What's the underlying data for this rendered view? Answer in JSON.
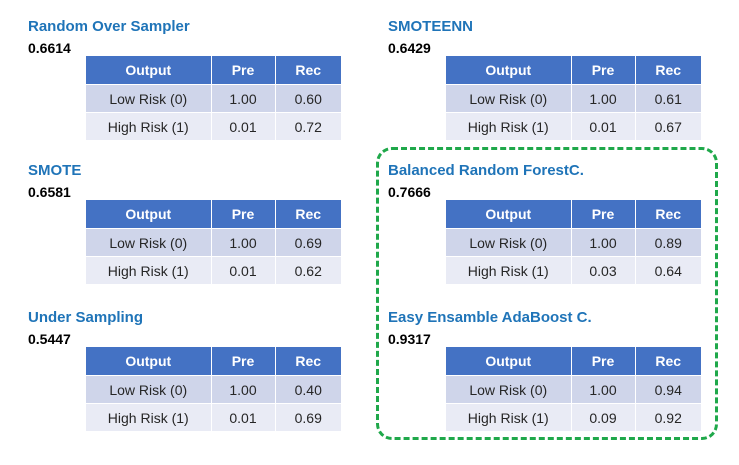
{
  "table_headers": [
    "Output",
    "Pre",
    "Rec"
  ],
  "models": [
    {
      "title": "Random Over Sampler",
      "score": "0.6614",
      "rows": [
        {
          "output": "Low Risk (0)",
          "pre": "1.00",
          "rec": "0.60"
        },
        {
          "output": "High Risk (1)",
          "pre": "0.01",
          "rec": "0.72"
        }
      ]
    },
    {
      "title": "SMOTEENN",
      "score": "0.6429",
      "rows": [
        {
          "output": "Low Risk (0)",
          "pre": "1.00",
          "rec": "0.61"
        },
        {
          "output": "High Risk (1)",
          "pre": "0.01",
          "rec": "0.67"
        }
      ]
    },
    {
      "title": "SMOTE",
      "score": "0.6581",
      "rows": [
        {
          "output": "Low Risk (0)",
          "pre": "1.00",
          "rec": "0.69"
        },
        {
          "output": "High Risk (1)",
          "pre": "0.01",
          "rec": "0.62"
        }
      ]
    },
    {
      "title": "Balanced Random ForestC.",
      "score": "0.7666",
      "rows": [
        {
          "output": "Low Risk (0)",
          "pre": "1.00",
          "rec": "0.89"
        },
        {
          "output": "High Risk (1)",
          "pre": "0.03",
          "rec": "0.64"
        }
      ]
    },
    {
      "title": "Under Sampling",
      "score": "0.5447",
      "rows": [
        {
          "output": "Low Risk (0)",
          "pre": "1.00",
          "rec": "0.40"
        },
        {
          "output": "High Risk (1)",
          "pre": "0.01",
          "rec": "0.69"
        }
      ]
    },
    {
      "title": "Easy Ensamble AdaBoost C.",
      "score": "0.9317",
      "rows": [
        {
          "output": "Low Risk (0)",
          "pre": "1.00",
          "rec": "0.94"
        },
        {
          "output": "High Risk (1)",
          "pre": "0.09",
          "rec": "0.92"
        }
      ]
    }
  ],
  "colors": {
    "title": "#1f74b8",
    "header_fill": "#4472c4",
    "row_dark": "#cfd5ea",
    "row_light": "#e9ebf5",
    "highlight_border": "#1fa84a"
  }
}
